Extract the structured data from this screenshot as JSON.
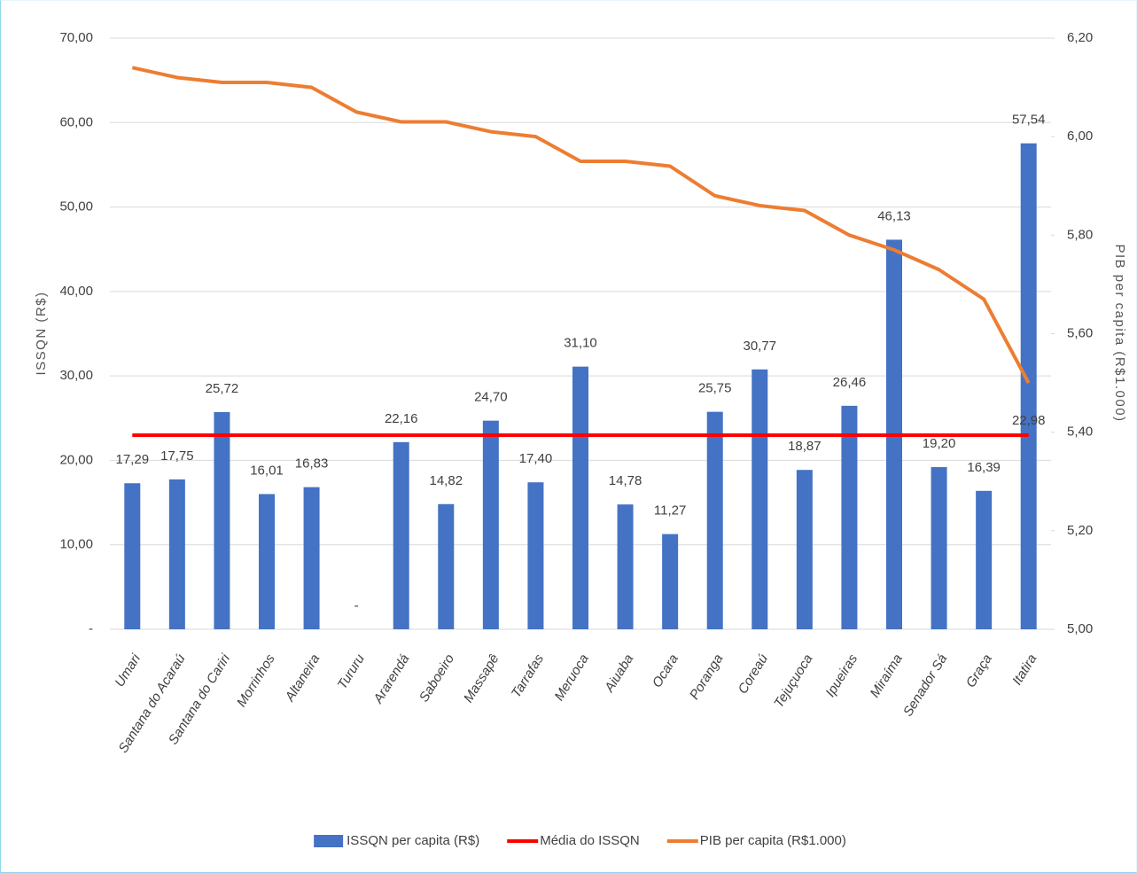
{
  "chart_data": {
    "type": "bar",
    "categories": [
      "Umari",
      "Santana do Acaraú",
      "Santana do Cariri",
      "Morrinhos",
      "Altaneira",
      "Tururu",
      "Ararendá",
      "Saboeiro",
      "Massapê",
      "Tarrafas",
      "Meruoca",
      "Aiuaba",
      "Ocara",
      "Poranga",
      "Coreaú",
      "Tejuçuoca",
      "Ipueiras",
      "Miraíma",
      "Senador Sá",
      "Graça",
      "Itatira"
    ],
    "series": [
      {
        "name": "ISSQN per capita (R$)",
        "type": "bar",
        "color": "#4472c4",
        "values": [
          17.29,
          17.75,
          25.72,
          16.01,
          16.83,
          0,
          22.16,
          14.82,
          24.7,
          17.4,
          31.1,
          14.78,
          11.27,
          25.75,
          30.77,
          18.87,
          26.46,
          46.13,
          19.2,
          16.39,
          57.54
        ],
        "value_labels": [
          "17,29",
          "17,75",
          "25,72",
          "16,01",
          "16,83",
          "-",
          "22,16",
          "14,82",
          "24,70",
          "17,40",
          "31,10",
          "14,78",
          "11,27",
          "25,75",
          "30,77",
          "18,87",
          "26,46",
          "46,13",
          "19,20",
          "16,39",
          "57,54"
        ]
      },
      {
        "name": "Média do ISSQN",
        "type": "line",
        "color": "#ff0000",
        "values": [
          22.98,
          22.98,
          22.98,
          22.98,
          22.98,
          22.98,
          22.98,
          22.98,
          22.98,
          22.98,
          22.98,
          22.98,
          22.98,
          22.98,
          22.98,
          22.98,
          22.98,
          22.98,
          22.98,
          22.98,
          22.98
        ],
        "value_labels": [
          null,
          null,
          null,
          null,
          null,
          null,
          null,
          null,
          null,
          null,
          null,
          null,
          null,
          null,
          null,
          null,
          null,
          null,
          null,
          null,
          "22,98"
        ]
      },
      {
        "name": "PIB per capita (R$1.000)",
        "type": "line",
        "color": "#ed7d31",
        "axis": "y2",
        "values": [
          6.14,
          6.12,
          6.11,
          6.11,
          6.1,
          6.05,
          6.03,
          6.03,
          6.01,
          6.0,
          5.95,
          5.95,
          5.94,
          5.88,
          5.86,
          5.85,
          5.8,
          5.77,
          5.73,
          5.67,
          5.5
        ]
      }
    ],
    "ylabel": "ISSQN (R$)",
    "y2label": "PIB per capita (R$1.000)",
    "ylim": [
      0,
      70
    ],
    "yticks": [
      {
        "value": 0,
        "label": "-"
      },
      {
        "value": 10,
        "label": "10,00"
      },
      {
        "value": 20,
        "label": "20,00"
      },
      {
        "value": 30,
        "label": "30,00"
      },
      {
        "value": 40,
        "label": "40,00"
      },
      {
        "value": 50,
        "label": "50,00"
      },
      {
        "value": 60,
        "label": "60,00"
      },
      {
        "value": 70,
        "label": "70,00"
      }
    ],
    "y2lim": [
      5.0,
      6.2
    ],
    "y2ticks": [
      {
        "value": 5.0,
        "label": "5,00"
      },
      {
        "value": 5.2,
        "label": "5,20"
      },
      {
        "value": 5.4,
        "label": "5,40"
      },
      {
        "value": 5.6,
        "label": "5,60"
      },
      {
        "value": 5.8,
        "label": "5,80"
      },
      {
        "value": 6.0,
        "label": "6,00"
      },
      {
        "value": 6.2,
        "label": "6,20"
      }
    ],
    "grid": true,
    "legend": "bottom"
  }
}
